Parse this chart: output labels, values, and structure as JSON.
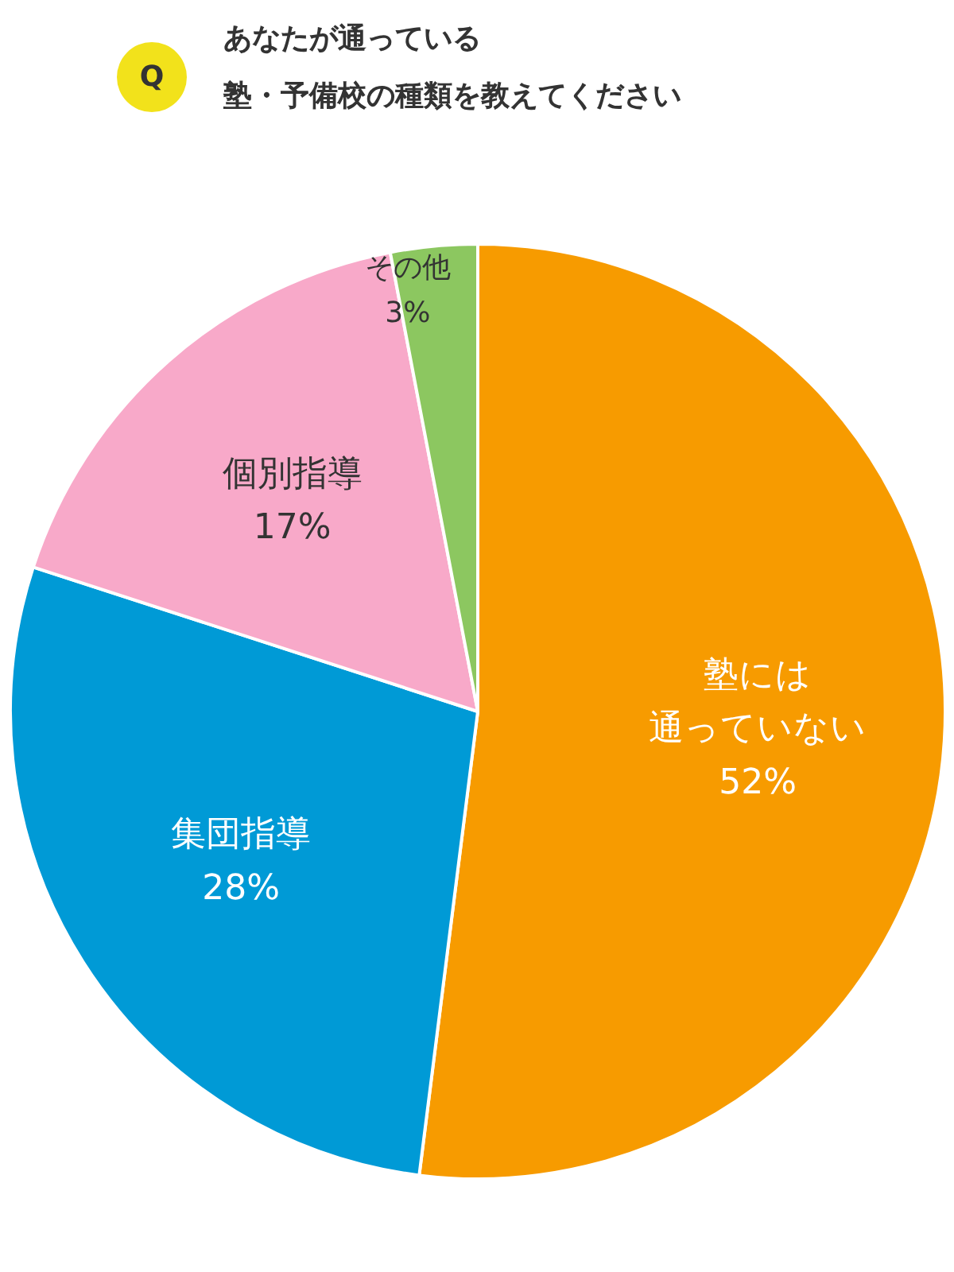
{
  "chart_data": {
    "type": "pie",
    "title": "あなたが通っている",
    "subtitle": "塾・予備校の種類を教えてください",
    "annotations": [
      "Q"
    ],
    "categories": [
      "塾には通っていない",
      "集団指導",
      "個別指導",
      "その他"
    ],
    "values": [
      52,
      28,
      17,
      3
    ],
    "value_labels": [
      "52%",
      "28%",
      "17%",
      "3%"
    ],
    "colors": [
      "#f79b00",
      "#009ad6",
      "#f8a9c9",
      "#8cc760"
    ]
  }
}
